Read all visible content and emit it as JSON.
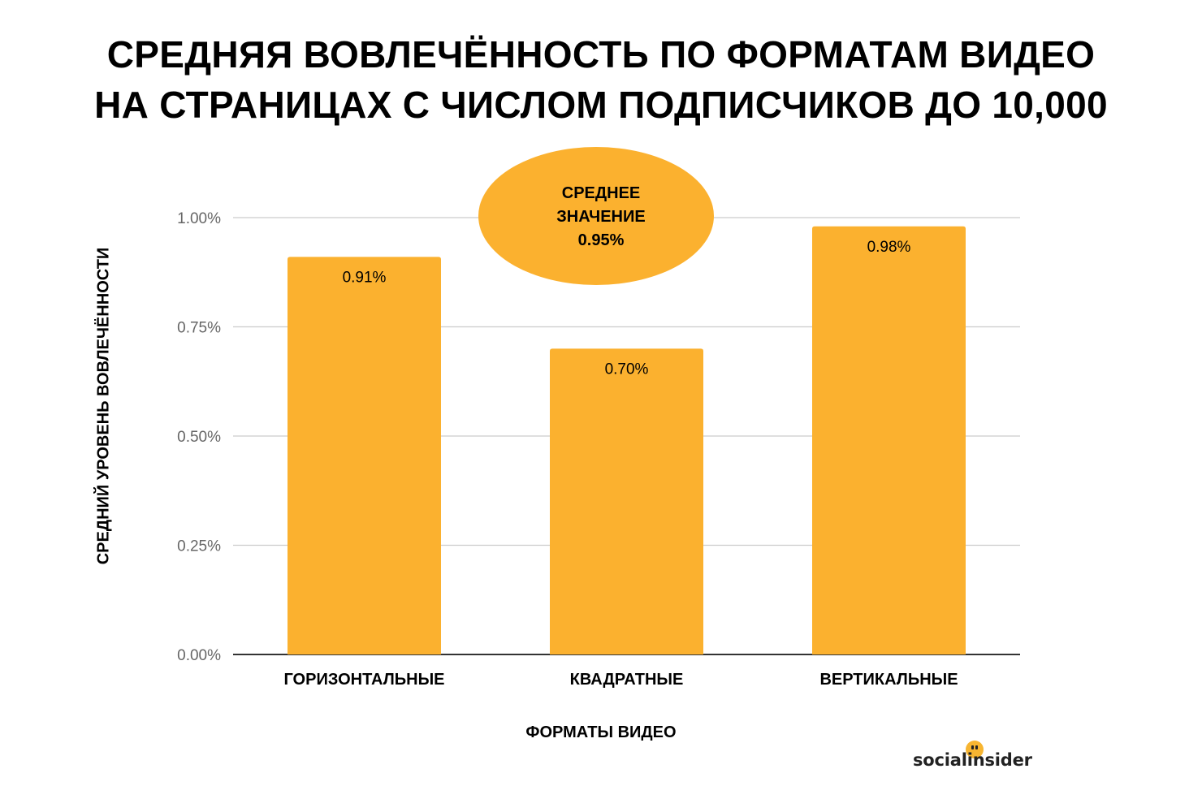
{
  "title": {
    "line1": "СРЕДНЯЯ ВОВЛЕЧЁННОСТЬ ПО ФОРМАТАМ ВИДЕО",
    "line2": "НА СТРАНИЦАХ С ЧИСЛОМ ПОДПИСЧИКОВ ДО 10,000"
  },
  "brand": {
    "logo_text": "socialinsider",
    "accent_color": "#f7b531"
  },
  "chart_data": {
    "type": "bar",
    "title": "СРЕДНЯЯ ВОВЛЕЧЁННОСТЬ ПО ФОРМАТАМ ВИДЕО НА СТРАНИЦАХ С ЧИСЛОМ ПОДПИСЧИКОВ ДО 10,000",
    "xlabel": "ФОРМАТЫ ВИДЕО",
    "ylabel": "СРЕДНИЙ УРОВЕНЬ ВОВЛЕЧЁННОСТИ",
    "categories": [
      "ГОРИЗОНТАЛЬНЫЕ",
      "КВАДРАТНЫЕ",
      "ВЕРТИКАЛЬНЫЕ"
    ],
    "values": [
      0.91,
      0.7,
      0.98
    ],
    "data_labels": [
      "0.91%",
      "0.70%",
      "0.98%"
    ],
    "ylim": [
      0,
      1.0
    ],
    "yticks": [
      0.0,
      0.25,
      0.5,
      0.75,
      1.0
    ],
    "ytick_labels": [
      "0.00%",
      "0.25%",
      "0.50%",
      "0.75%",
      "1.00%"
    ],
    "grid": true,
    "bar_color": "#fbb12f",
    "annotation": {
      "lines": [
        "СРЕДНЕЕ",
        "ЗНАЧЕНИЕ",
        "0.95%"
      ],
      "value": 0.95,
      "color": "#fbb12f"
    }
  }
}
